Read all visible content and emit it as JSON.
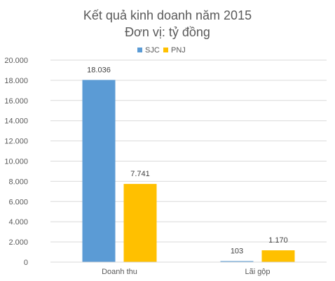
{
  "chart_data": {
    "type": "bar",
    "title": "Kết quả kinh doanh năm 2015",
    "subtitle": "Đơn vị: tỷ đồng",
    "categories": [
      "Doanh thu",
      "Lãi gộp"
    ],
    "series": [
      {
        "name": "SJC",
        "values": [
          18036,
          103
        ],
        "labels": [
          "18.036",
          "103"
        ],
        "color": "#5b9bd5"
      },
      {
        "name": "PNJ",
        "values": [
          7741,
          1170
        ],
        "labels": [
          "7.741",
          "1.170"
        ],
        "color": "#ffc000"
      }
    ],
    "yticks": [
      "0",
      "2.000",
      "4.000",
      "6.000",
      "8.000",
      "10.000",
      "12.000",
      "14.000",
      "16.000",
      "18.000",
      "20.000"
    ],
    "ylim": [
      0,
      20000
    ],
    "grid": true,
    "legend_position": "top"
  }
}
